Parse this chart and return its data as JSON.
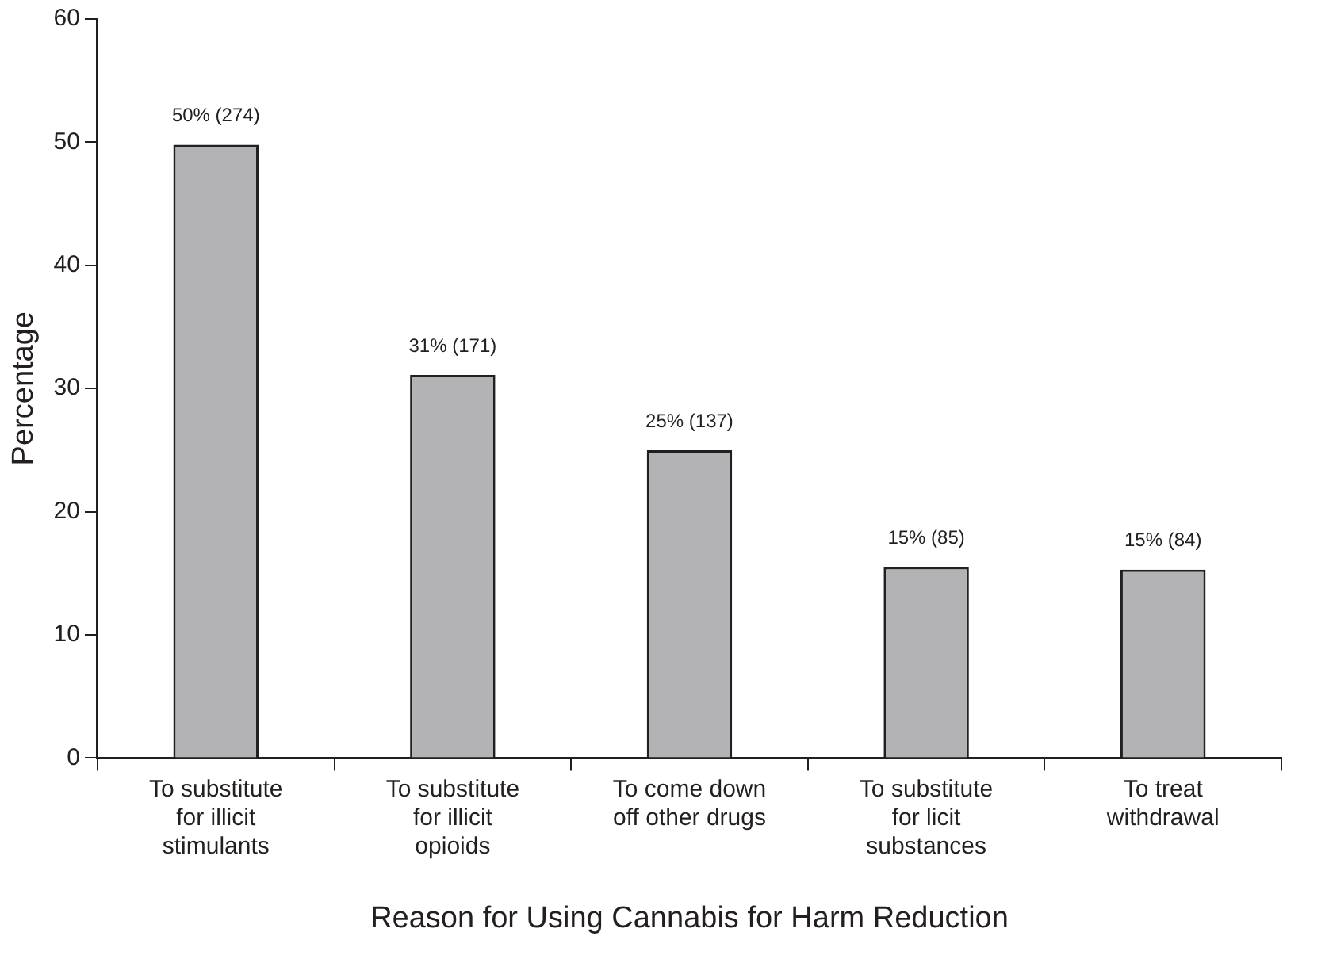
{
  "chart_data": {
    "type": "bar",
    "xlabel": "Reason for Using Cannabis for Harm Reduction",
    "ylabel": "Percentage",
    "categories": [
      "To substitute\nfor illicit\nstimulants",
      "To substitute\nfor illicit\nopioids",
      "To come down\noff other drugs",
      "To substitute\nfor licit\nsubstances",
      "To treat\nwithdrawal"
    ],
    "values": [
      49.8,
      31.1,
      25.0,
      15.5,
      15.3
    ],
    "value_labels": [
      "50% (274)",
      "31% (171)",
      "25% (137)",
      "15% (85)",
      "15% (84)"
    ],
    "color": "#b3b3b5",
    "ylim": [
      0,
      60
    ],
    "yticks": [
      0,
      10,
      20,
      30,
      40,
      50,
      60
    ],
    "grid": false,
    "legend": false
  }
}
